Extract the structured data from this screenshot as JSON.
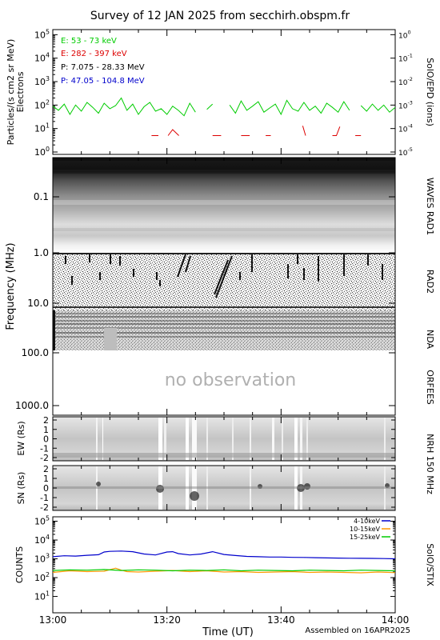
{
  "title": "Survey of 12 JAN 2025 from secchirh.obspm.fr",
  "footer": {
    "assembled": "Assembled on 16APR2025",
    "xlabel": "Time (UT)",
    "x_ticks": [
      "13:00",
      "13:20",
      "13:40",
      "14:00"
    ]
  },
  "panels": {
    "particles": {
      "ylabel_1": "Particles/(s cm2 sr MeV)",
      "ylabel_2": "Electrons",
      "right_label": "SolO/EPD (ions)",
      "left_ticks": [
        "10^0",
        "10^1",
        "10^2",
        "10^3",
        "10^4",
        "10^5"
      ],
      "right_ticks": [
        "10^-5",
        "10^-4",
        "10^-3",
        "10^-2",
        "10^-1",
        "10^0"
      ],
      "legend": [
        {
          "label": "E: 53 - 73 keV",
          "color": "#00cc00"
        },
        {
          "label": "E: 282 - 397 keV",
          "color": "#dd0000"
        },
        {
          "label": "P: 7.075 - 28.33 MeV",
          "color": "#000000"
        },
        {
          "label": "P: 47.05 - 104.8 MeV",
          "color": "#0000cc"
        }
      ]
    },
    "radio": {
      "ylabel": "Frequency (MHz)",
      "ticks": [
        "0.1",
        "1.0",
        "10.0",
        "100.0",
        "1000.0"
      ],
      "labels_right": [
        "WAVES RAD1",
        "RAD2",
        "NDA",
        "ORFEES"
      ],
      "no_observation": "no observation"
    },
    "nrh_ew": {
      "ylabel": "EW (Rs)",
      "ticks": [
        "2",
        "1",
        "0",
        "-1",
        "-2"
      ]
    },
    "nrh_sn": {
      "ylabel": "SN (Rs)",
      "ticks": [
        "2",
        "1",
        "0",
        "-1",
        "-2"
      ]
    },
    "nrh_right": "NRH 150 MHz",
    "stix": {
      "ylabel": "COUNTS",
      "right_label": "SolO/STIX",
      "ticks": [
        "10^1",
        "10^2",
        "10^3",
        "10^4",
        "10^5"
      ],
      "legend": [
        {
          "label": "4-10keV",
          "color": "#0000cc"
        },
        {
          "label": "10-15keV",
          "color": "#ff9900"
        },
        {
          "label": "15-25keV",
          "color": "#00cc00"
        }
      ]
    }
  },
  "chart_data": [
    {
      "type": "line",
      "yscale": "log",
      "ylim": [
        1,
        100000
      ],
      "x_range": [
        "13:00",
        "14:00"
      ],
      "series": [
        {
          "name": "E: 53 - 73 keV",
          "color": "#00cc00",
          "x_min": [
            0,
            1,
            2,
            3,
            4,
            5,
            6,
            7,
            8,
            9,
            10,
            11,
            12,
            13,
            14,
            15,
            16,
            17,
            18,
            19,
            20,
            21,
            22,
            23,
            24,
            25,
            26,
            27,
            28,
            29,
            30,
            31,
            32,
            33,
            34,
            35,
            36,
            37,
            38,
            39,
            40,
            41,
            42,
            43,
            44,
            45,
            46,
            47,
            48,
            49,
            50,
            51,
            52,
            53,
            54,
            55,
            56,
            57,
            58,
            59,
            60
          ],
          "y": [
            90,
            60,
            110,
            40,
            100,
            55,
            130,
            80,
            45,
            120,
            70,
            95,
            200,
            60,
            110,
            40,
            85,
            130,
            55,
            70,
            40,
            90,
            60,
            35,
            120,
            50,
            null,
            65,
            110,
            null,
            null,
            100,
            45,
            150,
            60,
            90,
            140,
            50,
            75,
            110,
            40,
            160,
            70,
            55,
            130,
            60,
            90,
            45,
            120,
            80,
            50,
            140,
            60,
            null,
            95,
            55,
            110,
            60,
            100,
            50,
            80
          ]
        },
        {
          "name": "E: 282 - 397 keV",
          "color": "#dd0000",
          "segments": [
            {
              "x_min": [
                17.3,
                18.5
              ],
              "y": [
                5,
                5
              ]
            },
            {
              "x_min": [
                20.2,
                21.0,
                22.1
              ],
              "y": [
                5,
                9,
                5
              ]
            },
            {
              "x_min": [
                28.0,
                29.5
              ],
              "y": [
                5,
                5
              ]
            },
            {
              "x_min": [
                33.0,
                34.5
              ],
              "y": [
                5,
                5
              ]
            },
            {
              "x_min": [
                37.3,
                38.2
              ],
              "y": [
                5,
                5
              ]
            },
            {
              "x_min": [
                43.8,
                44.3
              ],
              "y": [
                13,
                5
              ]
            },
            {
              "x_min": [
                49.0,
                49.7,
                50.3
              ],
              "y": [
                5,
                5,
                12
              ]
            },
            {
              "x_min": [
                53.0,
                54.0
              ],
              "y": [
                5,
                5
              ]
            }
          ]
        }
      ]
    },
    {
      "type": "line",
      "yscale": "log",
      "ylim": [
        1,
        100000
      ],
      "x_range": [
        "13:00",
        "14:00"
      ],
      "series": [
        {
          "name": "4-10keV",
          "color": "#0000cc",
          "x_min": [
            0,
            2,
            4,
            6,
            8,
            9,
            10,
            12,
            14,
            16,
            18,
            20,
            21,
            22,
            24,
            26,
            28,
            30,
            32,
            34,
            36,
            38,
            40,
            42,
            44,
            46,
            48,
            50,
            52,
            54,
            56,
            58,
            60
          ],
          "y": [
            1300,
            1450,
            1400,
            1550,
            1650,
            2300,
            2500,
            2600,
            2400,
            1800,
            1600,
            2300,
            2400,
            1900,
            1600,
            1800,
            2400,
            1700,
            1500,
            1350,
            1300,
            1250,
            1250,
            1200,
            1180,
            1150,
            1120,
            1100,
            1080,
            1060,
            1050,
            1030,
            1000
          ]
        },
        {
          "name": "10-15keV",
          "color": "#ff9900",
          "x_min": [
            0,
            3,
            6,
            9,
            11,
            12,
            13,
            15,
            18,
            21,
            24,
            27,
            30,
            33,
            36,
            39,
            42,
            45,
            48,
            51,
            54,
            57,
            60
          ],
          "y": [
            190,
            230,
            210,
            220,
            320,
            250,
            210,
            200,
            220,
            240,
            210,
            230,
            200,
            210,
            190,
            200,
            210,
            190,
            200,
            190,
            180,
            200,
            185
          ]
        },
        {
          "name": "15-25keV",
          "color": "#00cc00",
          "x_min": [
            0,
            3,
            6,
            9,
            12,
            15,
            18,
            21,
            24,
            27,
            30,
            33,
            36,
            39,
            42,
            45,
            48,
            51,
            54,
            57,
            60
          ],
          "y": [
            240,
            260,
            250,
            270,
            240,
            260,
            250,
            230,
            250,
            240,
            260,
            230,
            250,
            240,
            230,
            250,
            240,
            230,
            250,
            240,
            230
          ]
        }
      ]
    }
  ]
}
